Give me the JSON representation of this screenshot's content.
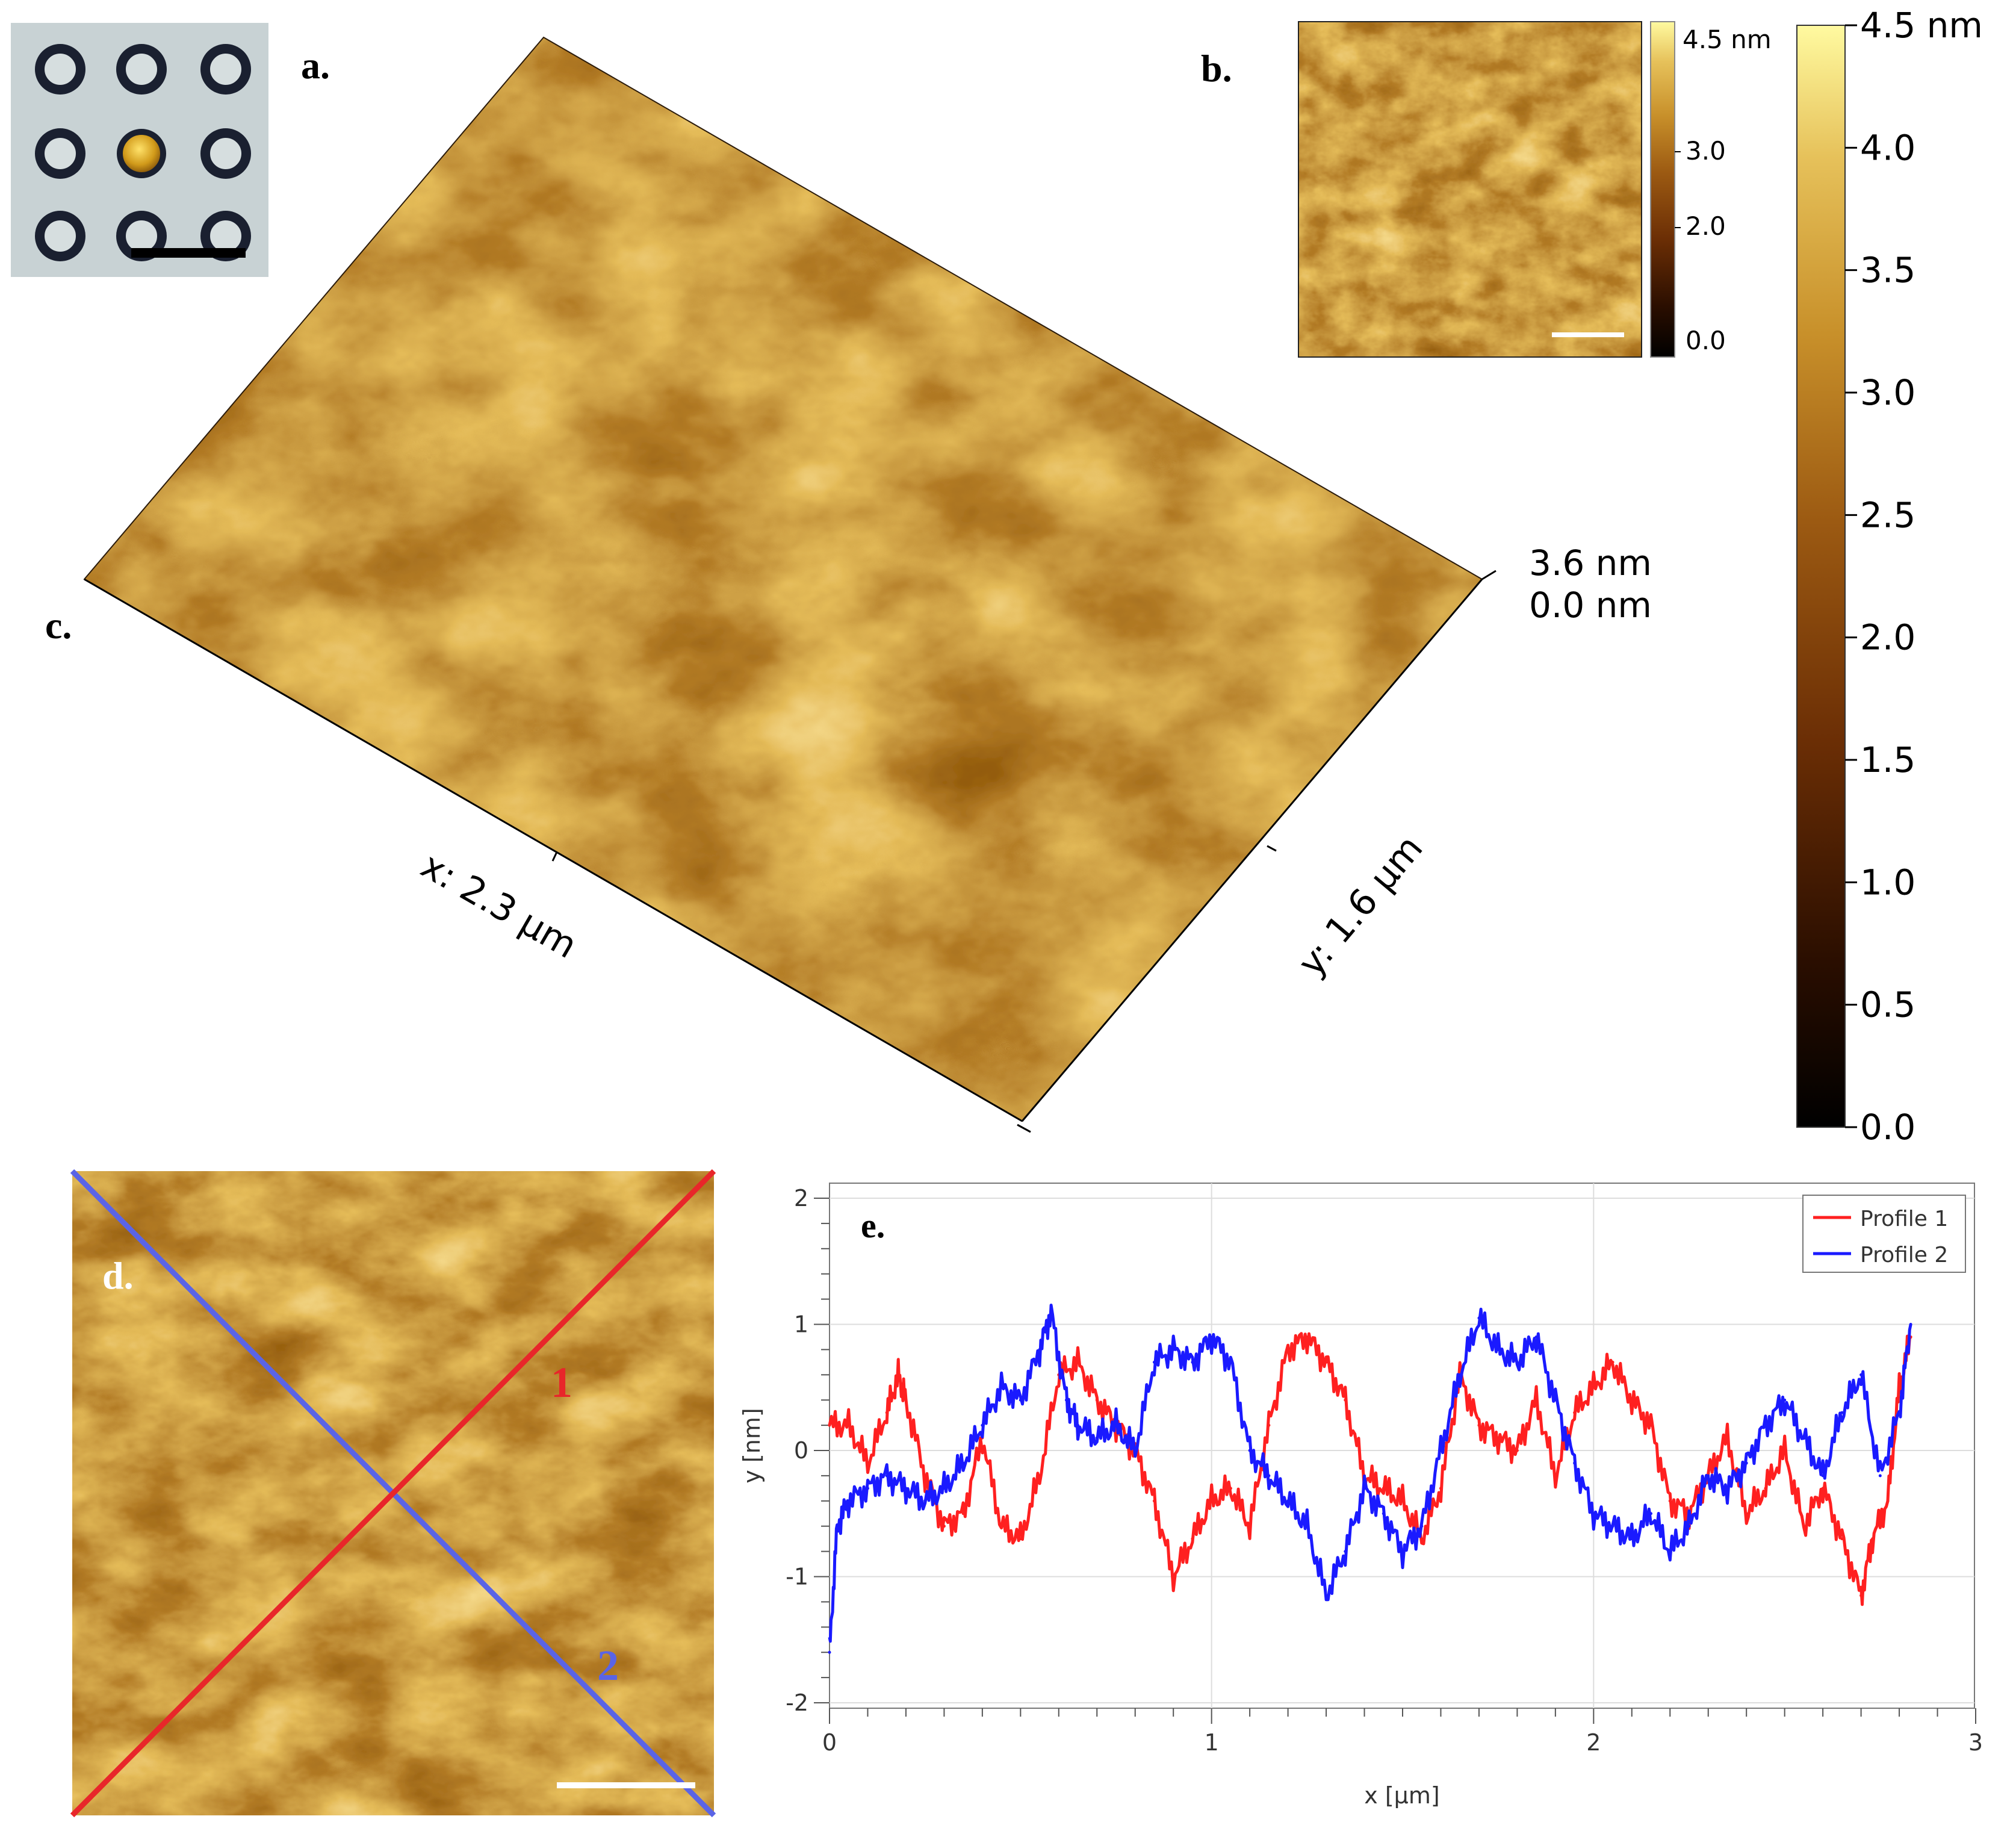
{
  "panels": {
    "a": {
      "label": "a."
    },
    "b": {
      "label": "b.",
      "colorbar_labels": [
        "4.5 nm",
        "3.0",
        "2.0",
        "0.0"
      ]
    },
    "c": {
      "label": "c.",
      "z_top": "3.6 nm",
      "z_bottom": "0.0 nm",
      "x_axis_label": "x: 2.3 µm",
      "y_axis_label": "y: 1.6 µm"
    },
    "colorbar": {
      "ticks": [
        "4.5 nm",
        "4.0",
        "3.5",
        "3.0",
        "2.5",
        "2.0",
        "1.5",
        "1.0",
        "0.5",
        "0.0"
      ],
      "values": [
        4.5,
        4.0,
        3.5,
        3.0,
        2.5,
        2.0,
        1.5,
        1.0,
        0.5,
        0.0
      ],
      "colors": [
        "#000000",
        "#3a1500",
        "#6b2e05",
        "#9c5a12",
        "#c8902a",
        "#e6c15a",
        "#fffaa0"
      ]
    },
    "d": {
      "label": "d.",
      "line1_label": "1",
      "line2_label": "2",
      "line1_color": "#e8262a",
      "line2_color": "#5a64e6"
    },
    "e": {
      "label": "e."
    }
  },
  "chart_data": {
    "type": "line",
    "title": "",
    "xlabel": "x [µm]",
    "ylabel": "y [nm]",
    "xlim": [
      0,
      3
    ],
    "ylim": [
      -2,
      2
    ],
    "xticks": [
      0,
      1,
      2,
      3
    ],
    "yticks": [
      -2,
      -1,
      0,
      1,
      2
    ],
    "legend_position": "top-right",
    "series": [
      {
        "name": "Profile 1",
        "color": "#ff2020",
        "x": [
          0,
          0.05,
          0.1,
          0.15,
          0.18,
          0.2,
          0.25,
          0.3,
          0.35,
          0.4,
          0.45,
          0.5,
          0.55,
          0.6,
          0.65,
          0.7,
          0.75,
          0.8,
          0.85,
          0.9,
          0.95,
          1.0,
          1.05,
          1.1,
          1.15,
          1.2,
          1.25,
          1.3,
          1.35,
          1.4,
          1.45,
          1.5,
          1.55,
          1.6,
          1.65,
          1.7,
          1.75,
          1.8,
          1.85,
          1.9,
          1.95,
          2.0,
          2.05,
          2.1,
          2.15,
          2.2,
          2.25,
          2.3,
          2.35,
          2.4,
          2.45,
          2.5,
          2.55,
          2.6,
          2.65,
          2.7,
          2.73,
          2.77,
          2.8,
          2.83
        ],
        "y": [
          0.2,
          0.2,
          -0.1,
          0.3,
          0.6,
          0.4,
          -0.2,
          -0.6,
          -0.5,
          0.1,
          -0.6,
          -0.7,
          -0.2,
          0.6,
          0.7,
          0.4,
          0.2,
          0.0,
          -0.4,
          -1.0,
          -0.7,
          -0.4,
          -0.3,
          -0.6,
          0.2,
          0.8,
          0.9,
          0.7,
          0.4,
          -0.2,
          -0.3,
          -0.4,
          -0.7,
          -0.3,
          0.6,
          0.2,
          0.1,
          0.0,
          0.4,
          -0.2,
          0.3,
          0.5,
          0.7,
          0.4,
          0.2,
          -0.4,
          -0.5,
          -0.2,
          0.1,
          -0.5,
          -0.3,
          0.0,
          -0.6,
          -0.3,
          -0.7,
          -1.15,
          -0.7,
          -0.4,
          0.5,
          0.9
        ]
      },
      {
        "name": "Profile 2",
        "color": "#1a1aff",
        "x": [
          0,
          0.02,
          0.05,
          0.1,
          0.15,
          0.2,
          0.25,
          0.3,
          0.35,
          0.4,
          0.45,
          0.5,
          0.55,
          0.58,
          0.62,
          0.65,
          0.7,
          0.75,
          0.8,
          0.85,
          0.9,
          0.95,
          1.0,
          1.05,
          1.1,
          1.15,
          1.2,
          1.25,
          1.3,
          1.35,
          1.4,
          1.45,
          1.5,
          1.55,
          1.6,
          1.65,
          1.7,
          1.75,
          1.8,
          1.85,
          1.9,
          1.95,
          2.0,
          2.05,
          2.1,
          2.15,
          2.2,
          2.25,
          2.3,
          2.35,
          2.4,
          2.45,
          2.5,
          2.55,
          2.6,
          2.65,
          2.7,
          2.75,
          2.8,
          2.83
        ],
        "y": [
          -1.6,
          -0.6,
          -0.4,
          -0.3,
          -0.2,
          -0.3,
          -0.4,
          -0.3,
          -0.1,
          0.2,
          0.5,
          0.4,
          0.8,
          1.1,
          0.4,
          0.2,
          0.1,
          0.2,
          0.0,
          0.7,
          0.8,
          0.7,
          0.9,
          0.7,
          0.0,
          -0.2,
          -0.4,
          -0.6,
          -1.15,
          -0.8,
          -0.3,
          -0.5,
          -0.8,
          -0.6,
          0.0,
          0.6,
          1.05,
          0.8,
          0.7,
          0.9,
          0.4,
          -0.1,
          -0.5,
          -0.6,
          -0.7,
          -0.5,
          -0.8,
          -0.6,
          -0.2,
          -0.3,
          -0.1,
          0.2,
          0.4,
          0.1,
          -0.2,
          0.3,
          0.6,
          -0.2,
          0.3,
          1.0
        ]
      }
    ]
  }
}
